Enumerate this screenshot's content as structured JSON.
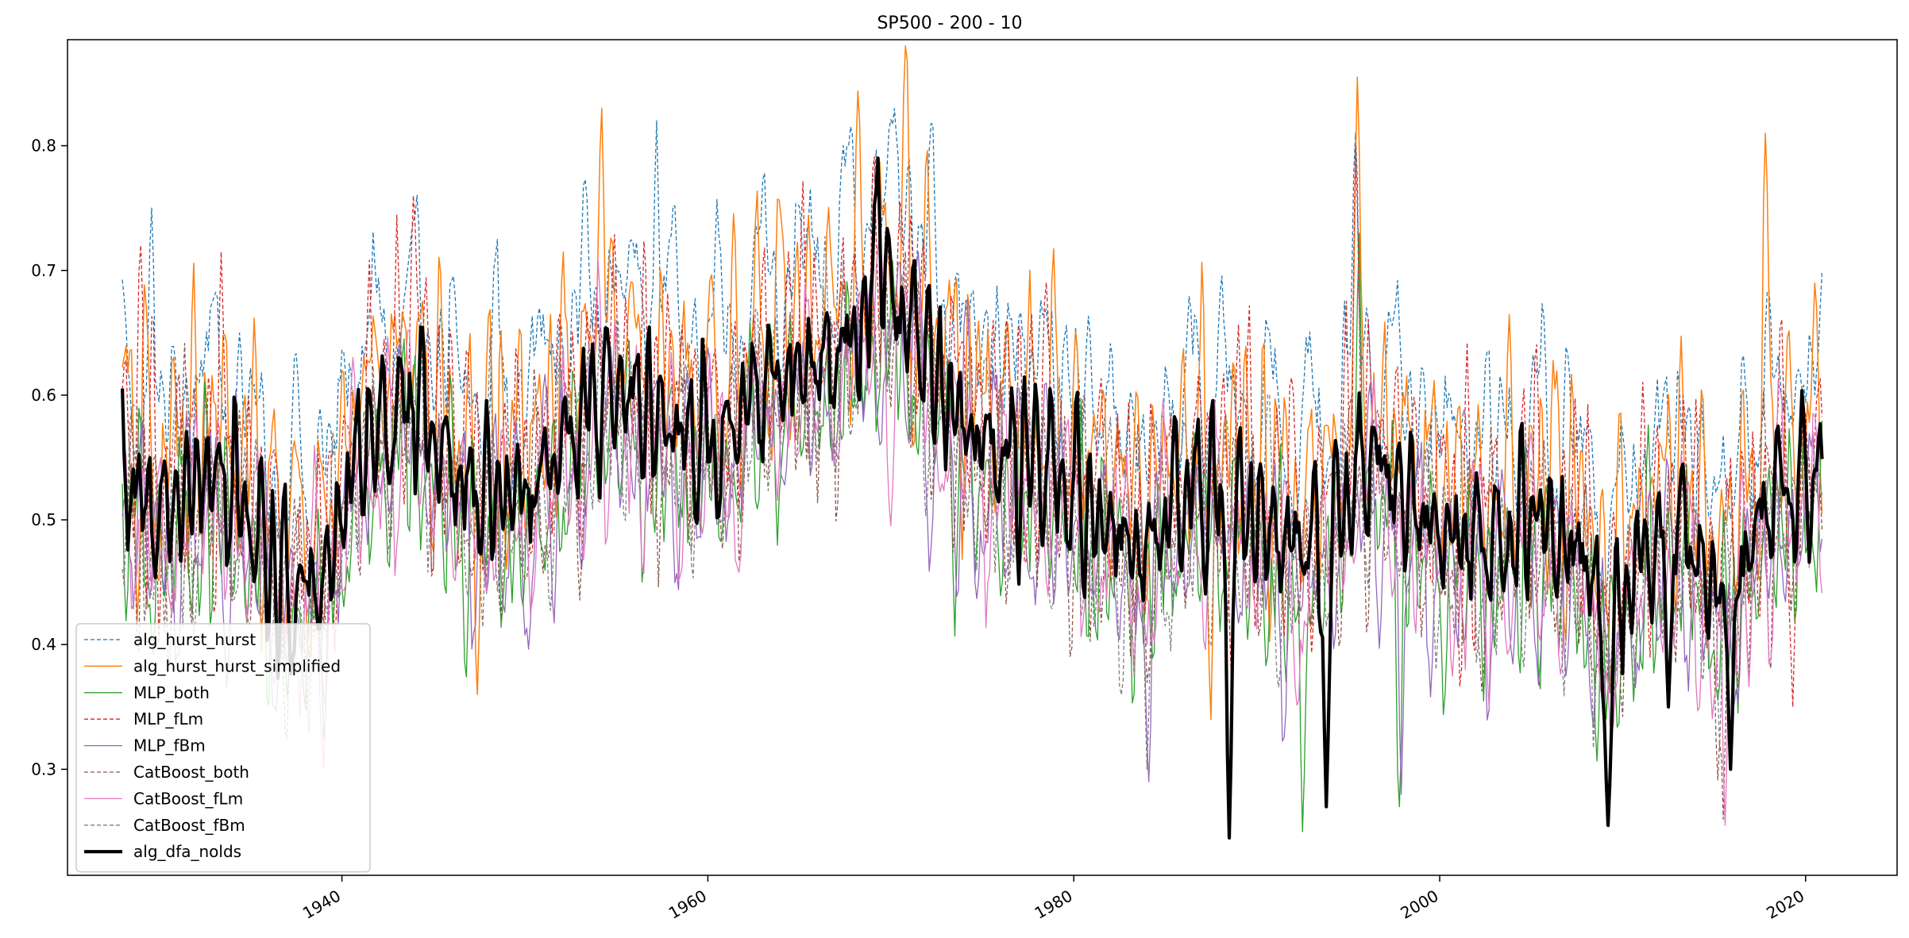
{
  "chart_data": {
    "type": "line",
    "title": "SP500 - 200 - 10",
    "xlabel": "",
    "ylabel": "",
    "x_range": [
      1928,
      2020.9
    ],
    "xlim": [
      1925,
      2025
    ],
    "ylim": [
      0.215,
      0.885
    ],
    "x_ticks": [
      1940,
      1960,
      1980,
      2000,
      2020
    ],
    "x_tick_labels": [
      "1940",
      "1960",
      "1980",
      "2000",
      "2020"
    ],
    "y_ticks": [
      0.3,
      0.4,
      0.5,
      0.6,
      0.7,
      0.8
    ],
    "y_tick_labels": [
      "0.3",
      "0.4",
      "0.5",
      "0.6",
      "0.7",
      "0.8"
    ],
    "grid": false,
    "legend": "lower-left",
    "samples_per_series": 930,
    "base_anchors": {
      "x": [
        1928,
        1929,
        1930,
        1932,
        1933,
        1935,
        1937,
        1939,
        1941,
        1942,
        1944,
        1945,
        1947,
        1950,
        1953,
        1954,
        1955,
        1957,
        1959,
        1961,
        1963,
        1965,
        1967,
        1969,
        1970,
        1971,
        1972,
        1974,
        1976,
        1978,
        1980,
        1982,
        1984,
        1985,
        1987,
        1988,
        1990,
        1993,
        1995,
        1996,
        1998,
        2000,
        2003,
        2005,
        2008,
        2009,
        2011,
        2013,
        2015,
        2016,
        2018,
        2020,
        2020.9
      ],
      "y": [
        0.55,
        0.52,
        0.5,
        0.53,
        0.54,
        0.5,
        0.44,
        0.45,
        0.56,
        0.57,
        0.6,
        0.56,
        0.52,
        0.52,
        0.58,
        0.6,
        0.61,
        0.58,
        0.57,
        0.56,
        0.61,
        0.62,
        0.63,
        0.67,
        0.68,
        0.66,
        0.63,
        0.57,
        0.55,
        0.55,
        0.52,
        0.5,
        0.47,
        0.5,
        0.53,
        0.52,
        0.5,
        0.47,
        0.52,
        0.55,
        0.52,
        0.49,
        0.48,
        0.5,
        0.47,
        0.4,
        0.47,
        0.5,
        0.44,
        0.45,
        0.52,
        0.53,
        0.55
      ]
    },
    "series": [
      {
        "name": "alg_hurst_hurst",
        "color": "#1f77b4",
        "style": "dashed",
        "width": 1.3,
        "offset": 0.085,
        "amp": 0.09,
        "seed": 11,
        "events": [
          [
            1929.6,
            0.75
          ],
          [
            1957.2,
            0.82
          ],
          [
            1971.0,
            0.79
          ],
          [
            1995.4,
            0.81
          ]
        ]
      },
      {
        "name": "alg_hurst_hurst_simplified",
        "color": "#ff7f0e",
        "style": "solid",
        "width": 1.5,
        "offset": 0.045,
        "amp": 0.12,
        "seed": 23,
        "events": [
          [
            1954.2,
            0.83
          ],
          [
            1995.5,
            0.855
          ],
          [
            2017.8,
            0.81
          ],
          [
            1987.5,
            0.34
          ],
          [
            1947.4,
            0.36
          ]
        ]
      },
      {
        "name": "MLP_both",
        "color": "#2ca02c",
        "style": "solid",
        "width": 1.3,
        "offset": -0.035,
        "amp": 0.1,
        "seed": 37,
        "events": [
          [
            1992.5,
            0.25
          ],
          [
            1995.6,
            0.73
          ],
          [
            1997.8,
            0.27
          ]
        ]
      },
      {
        "name": "MLP_fLm",
        "color": "#d62728",
        "style": "dashed",
        "width": 1.3,
        "offset": 0.025,
        "amp": 0.11,
        "seed": 41,
        "events": [
          [
            1929.0,
            0.72
          ],
          [
            1943.9,
            0.76
          ],
          [
            1995.4,
            0.8
          ],
          [
            2019.3,
            0.35
          ]
        ]
      },
      {
        "name": "MLP_fBm",
        "color": "#9467bd",
        "style": "solid",
        "width": 1.3,
        "offset": -0.03,
        "amp": 0.1,
        "seed": 53,
        "events": [
          [
            1984.1,
            0.29
          ],
          [
            1997.9,
            0.28
          ]
        ]
      },
      {
        "name": "CatBoost_both",
        "color": "#8c564b",
        "style": "dashed",
        "width": 1.3,
        "offset": -0.02,
        "amp": 0.1,
        "seed": 61,
        "events": [
          [
            2015.5,
            0.26
          ]
        ]
      },
      {
        "name": "CatBoost_fLm",
        "color": "#e377c2",
        "style": "solid",
        "width": 1.3,
        "offset": -0.025,
        "amp": 0.1,
        "seed": 67,
        "events": [
          [
            2015.6,
            0.255
          ]
        ]
      },
      {
        "name": "CatBoost_fBm",
        "color": "#7f7f7f",
        "style": "dashed",
        "width": 1.3,
        "offset": -0.02,
        "amp": 0.1,
        "seed": 71,
        "events": [
          [
            1984.0,
            0.3
          ]
        ]
      },
      {
        "name": "alg_dfa_nolds",
        "color": "#000000",
        "style": "solid",
        "width": 4.2,
        "offset": 0.0,
        "amp": 0.07,
        "seed": 89,
        "events": [
          [
            1969.3,
            0.79
          ],
          [
            1988.5,
            0.245
          ],
          [
            1993.8,
            0.27
          ],
          [
            2009.2,
            0.255
          ],
          [
            2012.5,
            0.35
          ],
          [
            2015.9,
            0.3
          ]
        ]
      }
    ]
  }
}
